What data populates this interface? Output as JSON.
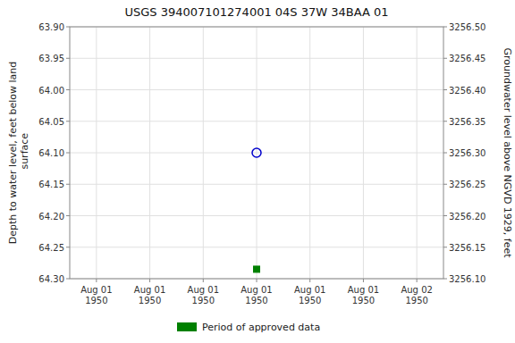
{
  "chart_data": {
    "type": "scatter",
    "title": "USGS 394007101274001 04S 37W 34BAA 01",
    "y_label": "Depth to water level, feet below land\n surface",
    "y2_label": "Groundwater level above NGVD 1929, feet",
    "categories": [
      "Aug 01\n1950",
      "Aug 01\n1950",
      "Aug 01\n1950",
      "Aug 01\n1950",
      "Aug 01\n1950",
      "Aug 01\n1950",
      "Aug 02\n1950"
    ],
    "ylim": [
      64.3,
      63.9
    ],
    "yticks": [
      {
        "value": 63.9,
        "label": "63.90"
      },
      63.95,
      {
        "value": 64.0,
        "label": "64.00"
      },
      64.05,
      {
        "value": 64.1,
        "label": "64.10"
      },
      64.15,
      {
        "value": 64.2,
        "label": "64.20"
      },
      64.25,
      {
        "value": 64.3,
        "label": "64.30"
      }
    ],
    "y2lim": [
      3256.1,
      3256.5
    ],
    "y2ticks": [
      {
        "value": 3256.1,
        "label": "3256.10"
      },
      3256.15,
      {
        "value": 3256.2,
        "label": "3256.20"
      },
      3256.25,
      {
        "value": 3256.3,
        "label": "3256.30"
      },
      3256.35,
      {
        "value": 3256.4,
        "label": "3256.40"
      },
      3256.45,
      {
        "value": 3256.5,
        "label": "3256.50"
      }
    ],
    "series": [
      {
        "color": "#0000cc",
        "marker": "open-circle",
        "values": [
          null,
          null,
          null,
          64.1,
          null,
          null,
          null
        ]
      },
      {
        "name": "Period of approved data",
        "color": "#008000",
        "marker": "square",
        "values": [
          null,
          null,
          null,
          64.285,
          null,
          null,
          null
        ]
      }
    ],
    "grid": true,
    "legend": "bottom"
  }
}
